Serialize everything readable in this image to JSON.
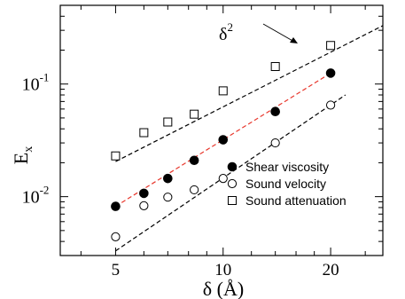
{
  "chart_data": {
    "type": "scatter",
    "xlabel": "δ (Å)",
    "ylabel": "E",
    "ylabel_sub": "x",
    "x_scale": "log",
    "y_scale": "log",
    "xlim": [
      3.5,
      28
    ],
    "ylim": [
      0.003,
      0.5
    ],
    "x_ticks": [
      {
        "value": 5,
        "label": "5"
      },
      {
        "value": 10,
        "label": "10"
      },
      {
        "value": 20,
        "label": "20"
      }
    ],
    "y_ticks": [
      {
        "value": 0.01,
        "base": "10",
        "exp": "-2"
      },
      {
        "value": 0.1,
        "base": "10",
        "exp": "-1"
      }
    ],
    "annotation": {
      "base": "δ",
      "exp": "2",
      "text": "δ²"
    },
    "legend_position": "lower-right",
    "series": [
      {
        "name": "Shear viscosity",
        "marker": "filled-circle",
        "x": [
          5,
          6,
          7,
          8.3,
          10,
          14,
          20
        ],
        "y": [
          0.0082,
          0.0107,
          0.0145,
          0.021,
          0.032,
          0.057,
          0.125
        ]
      },
      {
        "name": "Sound velocity",
        "marker": "open-circle",
        "x": [
          5,
          6,
          7,
          8.3,
          10,
          14,
          20
        ],
        "y": [
          0.0044,
          0.0083,
          0.0099,
          0.0115,
          0.0145,
          0.03,
          0.065
        ]
      },
      {
        "name": "Sound attenuation",
        "marker": "open-square",
        "x": [
          5,
          6,
          7,
          8.3,
          10,
          14,
          20
        ],
        "y": [
          0.023,
          0.037,
          0.046,
          0.054,
          0.087,
          0.143,
          0.22
        ]
      }
    ],
    "fit_lines": [
      {
        "x": [
          5,
          20
        ],
        "y": [
          0.0082,
          0.125
        ],
        "color": "#e8372c",
        "dash": "dashed"
      },
      {
        "x": [
          5,
          28
        ],
        "y": [
          0.0205,
          0.33
        ],
        "color": "#000000",
        "dash": "dashed"
      },
      {
        "x": [
          5,
          22
        ],
        "y": [
          0.0033,
          0.08
        ],
        "color": "#000000",
        "dash": "dashed"
      }
    ],
    "colors": {
      "axis": "#000000",
      "fit_red": "#e8372c",
      "fit_black": "#000000"
    }
  }
}
